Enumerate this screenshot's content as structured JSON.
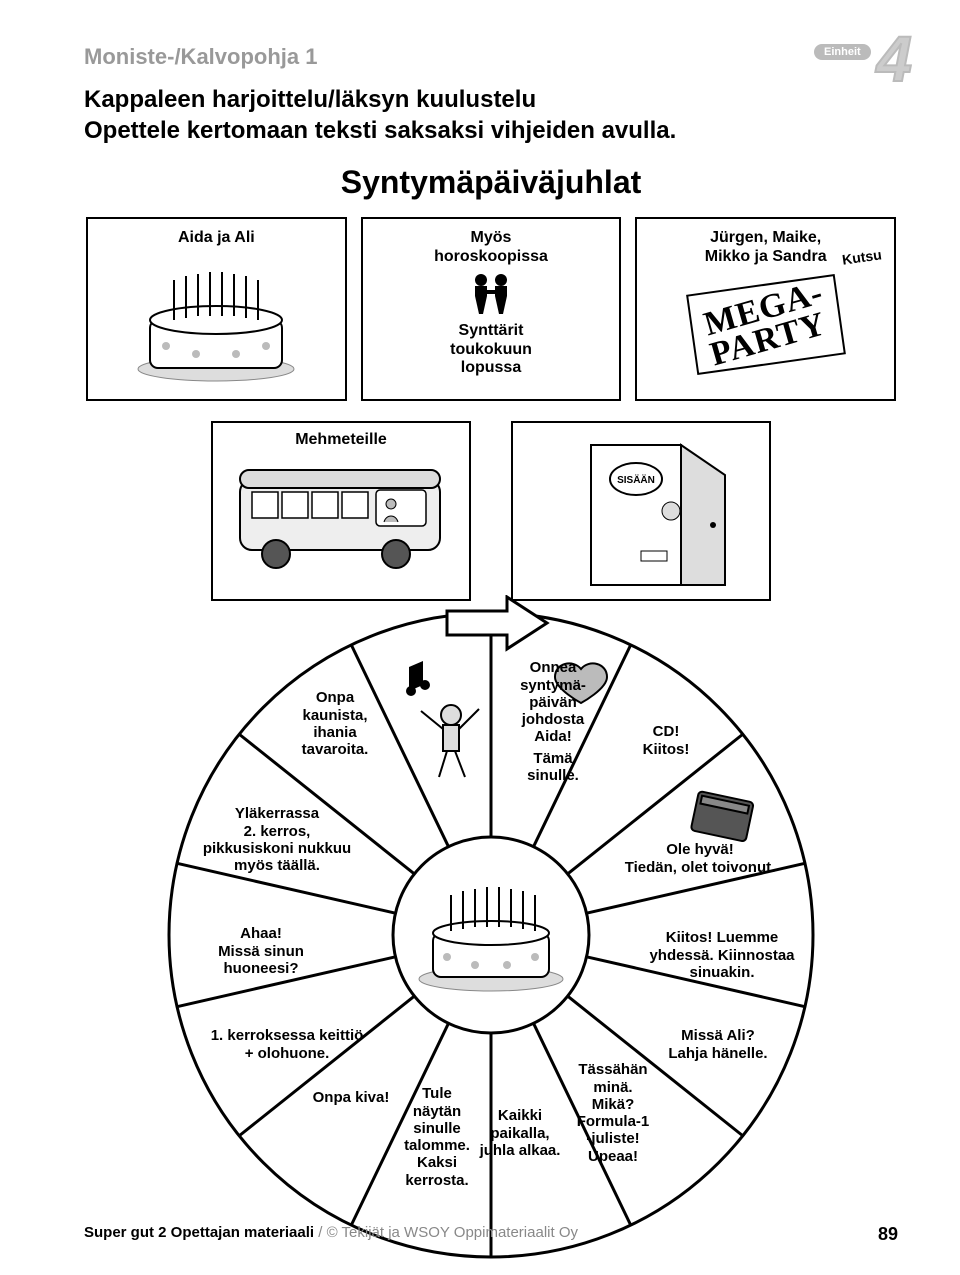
{
  "header": {
    "template_label": "Moniste-/Kalvopohja 1",
    "unit_label": "Einheit",
    "unit_number": "4"
  },
  "subtitle_line1": "Kappaleen harjoittelu/läksyn kuulustelu",
  "subtitle_line2": "Opettele kertomaan teksti saksaksi vihjeiden avulla.",
  "main_title": "Syntymäpäiväjuhlat",
  "cards": {
    "c1": {
      "label": "Aida ja Ali"
    },
    "c2": {
      "label_top": "Myös\nhoroskoopissa",
      "label_bottom": "Synttärit\ntoukokuun\nlopussa"
    },
    "c3": {
      "label_top": "Jürgen, Maike,\nMikko ja Sandra",
      "kutsu": "Kutsu",
      "mega1": "MEGA-",
      "mega2": "PARTY"
    }
  },
  "mid": {
    "m1": {
      "label": "Mehmeteille"
    },
    "m2": {
      "door_sign": "SISÄÄN"
    }
  },
  "wheel": {
    "colors": {
      "stroke": "#000000",
      "fill": "#ffffff"
    },
    "segments": [
      {
        "text": "Onnea syntymä-\npäivän johdosta Aida!\nTämä sinulle."
      },
      {
        "text": "CD!\nKiitos!"
      },
      {
        "text": "Ole hyvä!\nTiedän, olet toivonut."
      },
      {
        "text": "Kiitos! Luemme\nyhdessä. Kiinnostaa\nsinuakin."
      },
      {
        "text": "Missä Ali?\nLahja hänelle."
      },
      {
        "text": "Tässähän minä.\nMikä?\nFormula-1\n-juliste!\nUpeaa!"
      },
      {
        "text": "Kaikki\npaikalla,\njuhla alkaa."
      },
      {
        "text": "Tule\nnäytän\nsinulle\ntalomme.\nKaksi\nkerrosta."
      },
      {
        "text": "Onpa kiva!"
      },
      {
        "text": "1. kerroksessa keittiö\n+ olohuone."
      },
      {
        "text": "Ahaa!\nMissä sinun\nhuoneesi?"
      },
      {
        "text": "Yläkerrassa\n2. kerros,\npikkusiskoni nukkuu\nmyös täällä."
      },
      {
        "text": "Onpa\nkaunista,\nihania\ntavaroita."
      },
      {
        "text": ""
      }
    ]
  },
  "footer": {
    "book": "Super gut 2 Opettajan materiaali",
    "copyright": " / © Tekijät ja WSOY Oppimateriaalit Oy",
    "page": "89"
  }
}
